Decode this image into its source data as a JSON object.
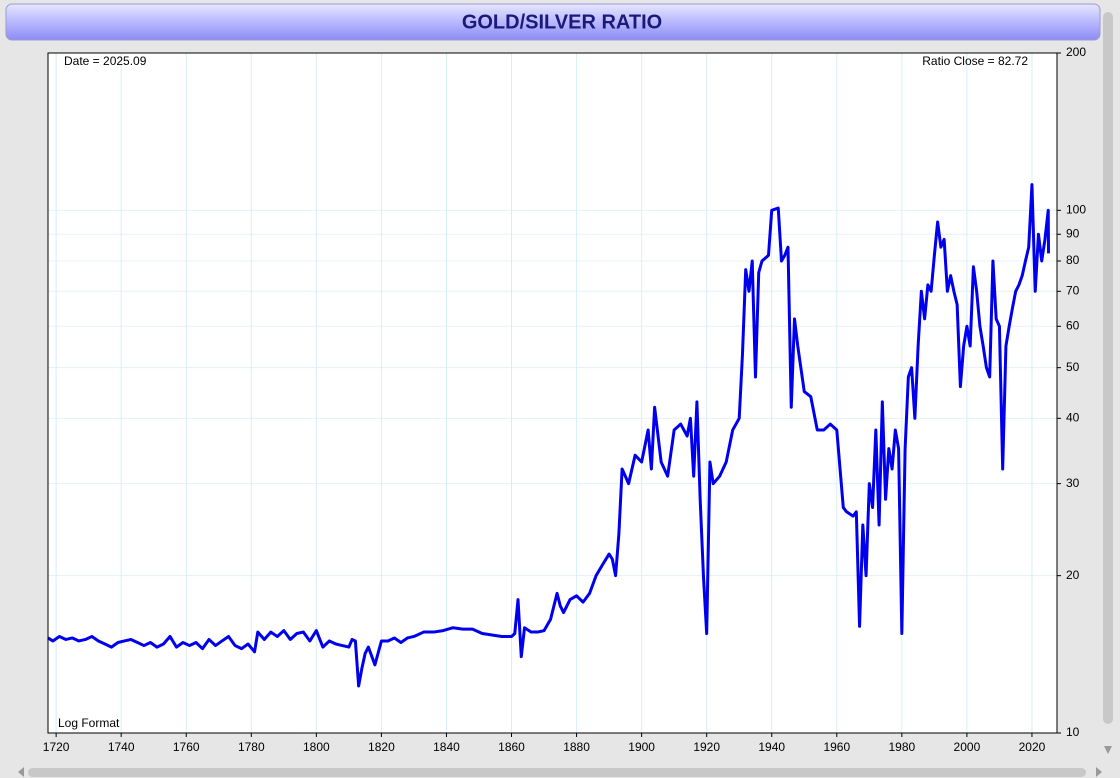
{
  "chart_data": {
    "type": "line",
    "title": "GOLD/SILVER RATIO",
    "annotations": {
      "top_left": "Date = 2025.09",
      "top_right": "Ratio Close = 82.72",
      "bottom_left": "Log Format"
    },
    "color": "#0000ee",
    "log_y": true,
    "grid": true,
    "xlim": [
      1717.5,
      2027.7
    ],
    "xticks": [
      1720,
      1740,
      1760,
      1780,
      1800,
      1820,
      1840,
      1860,
      1880,
      1900,
      1920,
      1940,
      1960,
      1980,
      2000,
      2020
    ],
    "ylim": [
      10,
      200
    ],
    "yticks": [
      10,
      20,
      30,
      40,
      50,
      60,
      70,
      80,
      90,
      100,
      200
    ],
    "x": [
      1717.5,
      1719,
      1721,
      1723,
      1725,
      1727,
      1729,
      1731,
      1733,
      1735,
      1737,
      1739,
      1741,
      1743,
      1745,
      1747,
      1749,
      1751,
      1753,
      1755,
      1757,
      1759,
      1761,
      1763,
      1765,
      1767,
      1769,
      1771,
      1773,
      1775,
      1777,
      1779,
      1781,
      1782,
      1784,
      1786,
      1788,
      1790,
      1792,
      1794,
      1796,
      1798,
      1800,
      1802,
      1804,
      1806,
      1808,
      1810,
      1811,
      1812,
      1813,
      1814,
      1815,
      1816,
      1818,
      1820,
      1822,
      1824,
      1826,
      1828,
      1830,
      1833,
      1836,
      1839,
      1842,
      1845,
      1848,
      1851,
      1854,
      1857,
      1860,
      1861,
      1862,
      1863,
      1864,
      1866,
      1868,
      1870,
      1872,
      1874,
      1875,
      1876,
      1878,
      1880,
      1882,
      1884,
      1886,
      1888,
      1890,
      1891,
      1892,
      1893,
      1894,
      1896,
      1898,
      1900,
      1902,
      1903,
      1904,
      1906,
      1908,
      1910,
      1912,
      1914,
      1915,
      1916,
      1917,
      1918,
      1919,
      1920,
      1921,
      1922,
      1924,
      1926,
      1928,
      1930,
      1931,
      1932,
      1933,
      1934,
      1935,
      1936,
      1937,
      1939,
      1940,
      1942,
      1943,
      1944,
      1945,
      1946,
      1947,
      1948,
      1950,
      1952,
      1954,
      1956,
      1958,
      1960,
      1962,
      1963,
      1965,
      1966,
      1967,
      1968,
      1969,
      1970,
      1971,
      1972,
      1973,
      1974,
      1975,
      1976,
      1977,
      1978,
      1979,
      1980,
      1981,
      1982,
      1983,
      1984,
      1985,
      1986,
      1987,
      1988,
      1989,
      1990,
      1991,
      1992,
      1993,
      1994,
      1995,
      1996,
      1997,
      1998,
      1999,
      2000,
      2001,
      2002,
      2003,
      2004,
      2005,
      2006,
      2007,
      2008,
      2009,
      2010,
      2011,
      2012,
      2013,
      2014,
      2015,
      2016,
      2017,
      2018,
      2019,
      2020,
      2021,
      2022,
      2023,
      2024,
      2025,
      2025.09
    ],
    "values": [
      15.2,
      15.0,
      15.3,
      15.1,
      15.2,
      15.0,
      15.1,
      15.3,
      15.0,
      14.8,
      14.6,
      14.9,
      15.0,
      15.1,
      14.9,
      14.7,
      14.9,
      14.6,
      14.8,
      15.3,
      14.6,
      14.9,
      14.7,
      14.9,
      14.5,
      15.1,
      14.7,
      15.0,
      15.3,
      14.7,
      14.5,
      14.8,
      14.3,
      15.6,
      15.1,
      15.6,
      15.3,
      15.7,
      15.1,
      15.5,
      15.6,
      15.0,
      15.7,
      14.6,
      15.0,
      14.8,
      14.7,
      14.6,
      15.1,
      15.0,
      12.3,
      13.3,
      14.2,
      14.6,
      13.5,
      15.0,
      15.0,
      15.2,
      14.9,
      15.2,
      15.3,
      15.6,
      15.6,
      15.7,
      15.9,
      15.8,
      15.8,
      15.5,
      15.4,
      15.3,
      15.3,
      15.5,
      18.0,
      14.0,
      15.9,
      15.6,
      15.6,
      15.7,
      16.5,
      18.5,
      17.5,
      17.0,
      18.0,
      18.3,
      17.8,
      18.5,
      20.0,
      21.0,
      22.0,
      21.5,
      20.0,
      24.0,
      32.0,
      30.0,
      34.0,
      33.0,
      38.0,
      32.0,
      42.0,
      33.0,
      31.0,
      38.0,
      39.0,
      37.0,
      40.0,
      31.0,
      43.0,
      28.0,
      20.0,
      15.5,
      33.0,
      30.0,
      31.0,
      33.0,
      38.0,
      40.0,
      53.0,
      77.0,
      70.0,
      80.0,
      48.0,
      76.0,
      80.0,
      82.0,
      100.0,
      101.0,
      80.0,
      82.0,
      85.0,
      42.0,
      62.0,
      55.0,
      45.0,
      44.0,
      38.0,
      38.0,
      39.0,
      38.0,
      27.0,
      26.5,
      26.0,
      26.5,
      16.0,
      25.0,
      20.0,
      30.0,
      27.0,
      38.0,
      25.0,
      43.0,
      28.0,
      35.0,
      32.0,
      38.0,
      35.0,
      15.5,
      35.0,
      48.0,
      50.0,
      40.0,
      55.0,
      70.0,
      62.0,
      72.0,
      70.0,
      82.0,
      95.0,
      85.0,
      88.0,
      70.0,
      75.0,
      70.0,
      66.0,
      46.0,
      55.0,
      60.0,
      55.0,
      78.0,
      70.0,
      60.0,
      55.0,
      50.0,
      48.0,
      80.0,
      62.0,
      60.0,
      32.0,
      55.0,
      60.0,
      65.0,
      70.0,
      72.0,
      75.0,
      80.0,
      85.0,
      112.0,
      70.0,
      90.0,
      80.0,
      88.0,
      100.0,
      82.72
    ]
  }
}
